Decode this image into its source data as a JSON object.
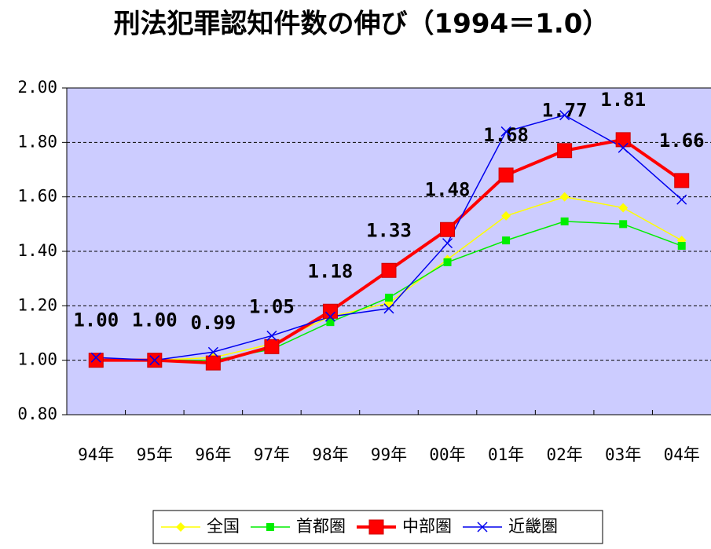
{
  "chart_data": {
    "type": "line",
    "title": "刑法犯罪認知件数の伸び（1994＝1.0）",
    "categories": [
      "94年",
      "95年",
      "96年",
      "97年",
      "98年",
      "99年",
      "00年",
      "01年",
      "02年",
      "03年",
      "04年"
    ],
    "ylim": [
      0.8,
      2.0
    ],
    "yticks": [
      {
        "value": 0.8,
        "label": "0.80"
      },
      {
        "value": 1.0,
        "label": "1.00"
      },
      {
        "value": 1.2,
        "label": "1.20"
      },
      {
        "value": 1.4,
        "label": "1.40"
      },
      {
        "value": 1.6,
        "label": "1.60"
      },
      {
        "value": 1.8,
        "label": "1.80"
      },
      {
        "value": 2.0,
        "label": "2.00"
      }
    ],
    "grid": true,
    "legend": "bottom",
    "series": [
      {
        "name": "全国",
        "color": "#ffff00",
        "marker": "diamond",
        "values": [
          1.0,
          1.0,
          1.01,
          1.06,
          1.16,
          1.21,
          1.37,
          1.53,
          1.6,
          1.56,
          1.44
        ]
      },
      {
        "name": "首都圏",
        "color": "#00ee00",
        "marker": "square",
        "values": [
          1.0,
          1.0,
          1.0,
          1.04,
          1.14,
          1.23,
          1.36,
          1.44,
          1.51,
          1.5,
          1.42
        ]
      },
      {
        "name": "中部圏",
        "color": "#ff0000",
        "marker": "bigsquare",
        "values": [
          1.0,
          1.0,
          0.99,
          1.05,
          1.18,
          1.33,
          1.48,
          1.68,
          1.77,
          1.81,
          1.66
        ],
        "value_labels": [
          "1.00",
          "1.00",
          "0.99",
          "1.05",
          "1.18",
          "1.33",
          "1.48",
          "1.68",
          "1.77",
          "1.81",
          "1.66"
        ]
      },
      {
        "name": "近畿圏",
        "color": "#0000ee",
        "marker": "x",
        "values": [
          1.01,
          1.0,
          1.03,
          1.09,
          1.16,
          1.19,
          1.43,
          1.84,
          1.9,
          1.78,
          1.59
        ]
      }
    ]
  }
}
